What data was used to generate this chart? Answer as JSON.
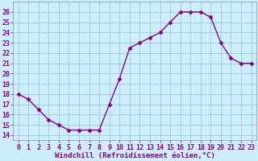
{
  "x": [
    0,
    1,
    2,
    3,
    4,
    5,
    6,
    7,
    8,
    9,
    10,
    11,
    12,
    13,
    14,
    15,
    16,
    17,
    18,
    19,
    20,
    21,
    22,
    23
  ],
  "y": [
    18,
    17.5,
    16.5,
    15.5,
    15,
    14.5,
    14.5,
    14.5,
    14.5,
    17,
    19.5,
    22.5,
    23,
    23.5,
    24,
    25,
    26,
    26,
    26,
    25.5,
    23,
    21.5,
    21,
    21
  ],
  "line_color": "#880088",
  "marker": "D",
  "marker_size": 2.5,
  "bg_color": "#cceeff",
  "grid_color": "#99cccc",
  "xlabel": "Windchill (Refroidissement éolien,°C)",
  "xlabel_fontsize": 6.5,
  "ylabel_ticks": [
    14,
    15,
    16,
    17,
    18,
    19,
    20,
    21,
    22,
    23,
    24,
    25,
    26
  ],
  "ylim": [
    13.5,
    27.0
  ],
  "xlim": [
    -0.5,
    23.5
  ],
  "xtick_labels": [
    "0",
    "1",
    "2",
    "3",
    "4",
    "5",
    "6",
    "7",
    "8",
    "9",
    "10",
    "11",
    "12",
    "13",
    "14",
    "15",
    "16",
    "17",
    "18",
    "19",
    "20",
    "21",
    "22",
    "23"
  ],
  "tick_fontsize": 6.0,
  "tick_color": "#880088",
  "label_color": "#880088",
  "spine_color": "#888888",
  "linewidth": 1.0
}
